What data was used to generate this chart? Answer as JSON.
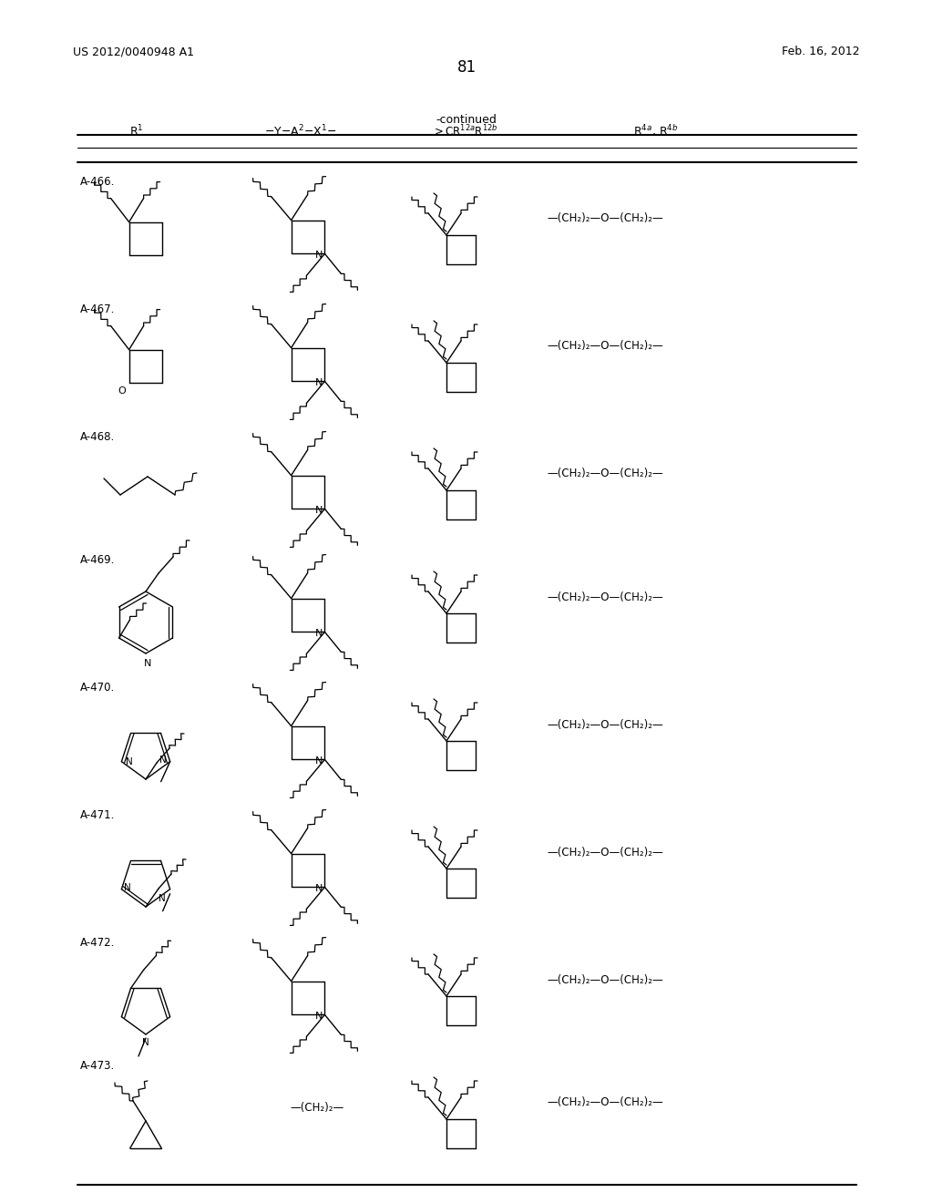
{
  "page_number": "81",
  "patent_number": "US 2012/0040948 A1",
  "patent_date": "Feb. 16, 2012",
  "table_title": "-continued",
  "background": "#ffffff",
  "text_color": "#000000",
  "rows": [
    {
      "id": "A-466.",
      "r4": "—(CH₂)₂—O—(CH₂)₂—",
      "r1_type": "cyclobutyl"
    },
    {
      "id": "A-467.",
      "r4": "—(CH₂)₂—O—(CH₂)₂—",
      "r1_type": "oxetanyl"
    },
    {
      "id": "A-468.",
      "r4": "—(CH₂)₂—O—(CH₂)₂—",
      "r1_type": "propyl"
    },
    {
      "id": "A-469.",
      "r4": "—(CH₂)₂—O—(CH₂)₂—",
      "r1_type": "pyridyl"
    },
    {
      "id": "A-470.",
      "r4": "—(CH₂)₂—O—(CH₂)₂—",
      "r1_type": "methylimidazolyl"
    },
    {
      "id": "A-471.",
      "r4": "—(CH₂)₂—O—(CH₂)₂—",
      "r1_type": "methylpyrazolyl"
    },
    {
      "id": "A-472.",
      "r4": "—(CH₂)₂—O—(CH₂)₂—",
      "r1_type": "methylpyrrolyl"
    },
    {
      "id": "A-473.",
      "r4": "—(CH₂)₂—O—(CH₂)₂—",
      "r1_type": "cyclopropylmethyl",
      "col2_text": "—(CH₂)₂—"
    }
  ]
}
